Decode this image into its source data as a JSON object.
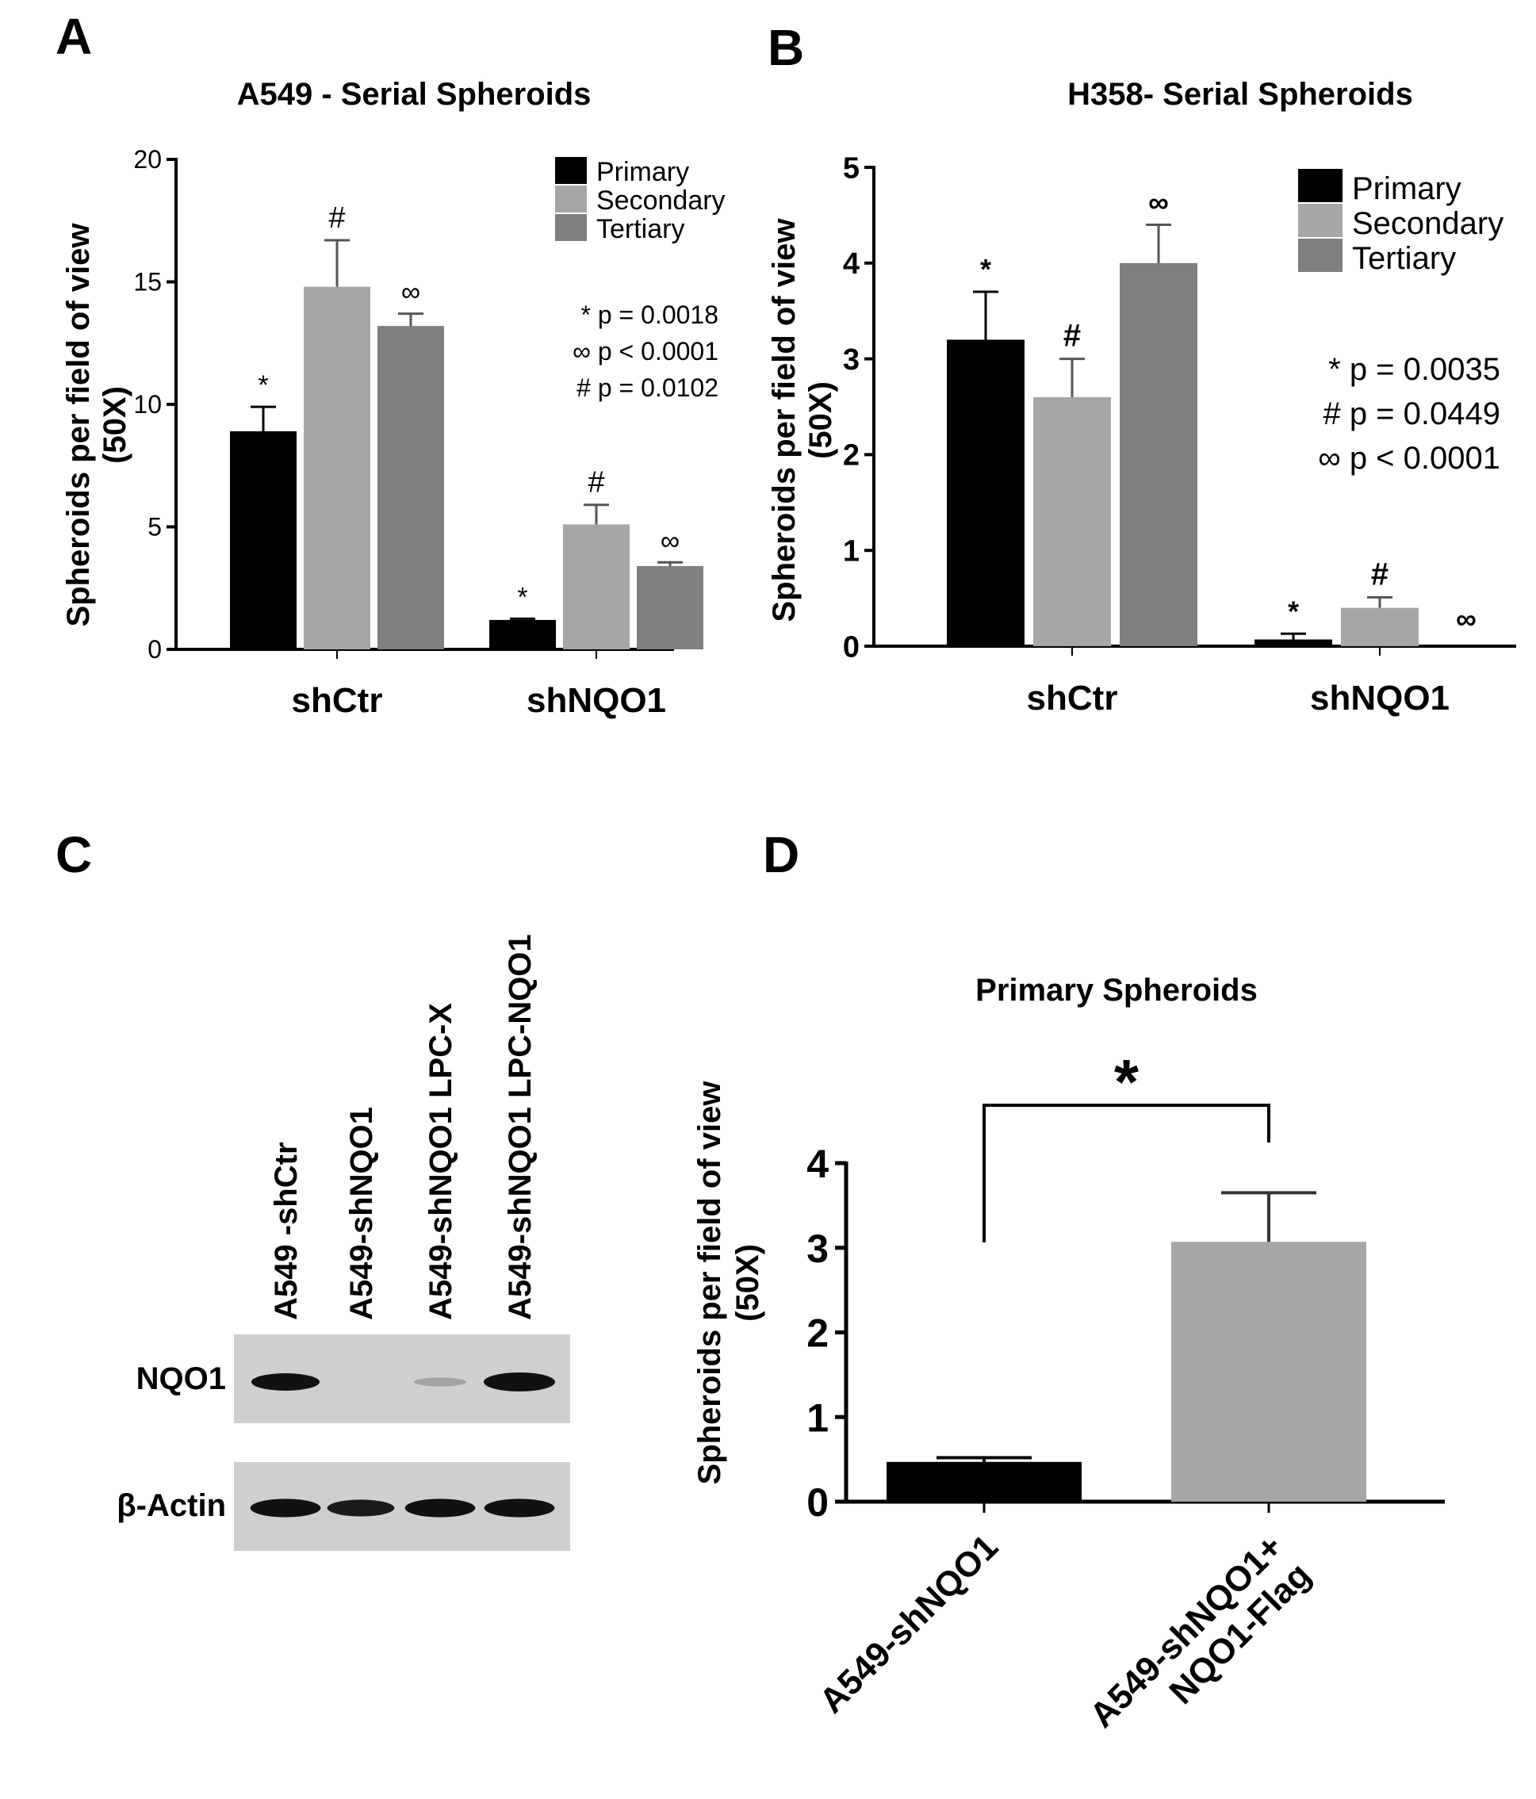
{
  "colors": {
    "primary": "#000000",
    "secondary": "#a6a6a6",
    "tertiary": "#7f7f7f",
    "blot_bg": "#cfcfcf",
    "band": "#111111"
  },
  "chart_data": [
    {
      "panel": "A",
      "type": "bar",
      "title": "A549 - Serial Spheroids",
      "ylabel": [
        "Spheroids per field of view",
        "(50X)"
      ],
      "ylim": [
        0,
        20
      ],
      "yticks": [
        0,
        5,
        10,
        15,
        20
      ],
      "categories": [
        "shCtr",
        "shNQO1"
      ],
      "series": [
        {
          "name": "Primary",
          "values": [
            8.9,
            1.2
          ],
          "errors": [
            1.0,
            0.05
          ],
          "markers": [
            "*",
            "*"
          ]
        },
        {
          "name": "Secondary",
          "values": [
            14.8,
            5.1
          ],
          "errors": [
            1.9,
            0.8
          ],
          "markers": [
            "#",
            "#"
          ]
        },
        {
          "name": "Tertiary",
          "values": [
            13.2,
            3.4
          ],
          "errors": [
            0.5,
            0.15
          ],
          "markers": [
            "∞",
            "∞"
          ]
        }
      ],
      "legend_position": "top-right",
      "stats": [
        "* p = 0.0018",
        "∞ p < 0.0001",
        "# p = 0.0102"
      ]
    },
    {
      "panel": "B",
      "type": "bar",
      "title": "H358- Serial Spheroids",
      "ylabel": [
        "Spheroids per field of view",
        "(50X)"
      ],
      "ylim": [
        0,
        5
      ],
      "yticks": [
        0,
        1,
        2,
        3,
        4,
        5
      ],
      "categories": [
        "shCtr",
        "shNQO1"
      ],
      "series": [
        {
          "name": "Primary",
          "values": [
            3.2,
            0.07
          ],
          "errors": [
            0.5,
            0.06
          ],
          "markers": [
            "*",
            "*"
          ]
        },
        {
          "name": "Secondary",
          "values": [
            2.6,
            0.4
          ],
          "errors": [
            0.4,
            0.11
          ],
          "markers": [
            "#",
            "#"
          ]
        },
        {
          "name": "Tertiary",
          "values": [
            4.0,
            0.0
          ],
          "errors": [
            0.4,
            0.0
          ],
          "markers": [
            "∞",
            "∞"
          ]
        }
      ],
      "legend_position": "top-right",
      "stats": [
        "* p = 0.0035",
        "# p = 0.0449",
        "∞ p < 0.0001"
      ]
    },
    {
      "panel": "D",
      "type": "bar",
      "title": "Primary Spheroids",
      "ylabel": [
        "Spheroids per field of view",
        "(50X)"
      ],
      "ylim": [
        0,
        4
      ],
      "yticks": [
        0,
        1,
        2,
        3,
        4
      ],
      "categories": [
        [
          "A549-shNQO1"
        ],
        [
          "A549-shNQO1+",
          "NQO1-Flag"
        ]
      ],
      "values": [
        0.47,
        3.07
      ],
      "errors": [
        0.05,
        0.58
      ],
      "significance": "*"
    }
  ],
  "blot": {
    "panel": "C",
    "lanes": [
      "A549 -shCtr",
      "A549-shNQO1",
      "A549-shNQO1 LPC-X",
      "A549-shNQO1 LPC-NQO1"
    ],
    "rows": [
      {
        "label": "NQO1",
        "intensity": [
          0.85,
          0.0,
          0.08,
          1.0
        ]
      },
      {
        "label": "β-Actin",
        "intensity": [
          0.95,
          0.8,
          0.95,
          0.95
        ]
      }
    ]
  }
}
